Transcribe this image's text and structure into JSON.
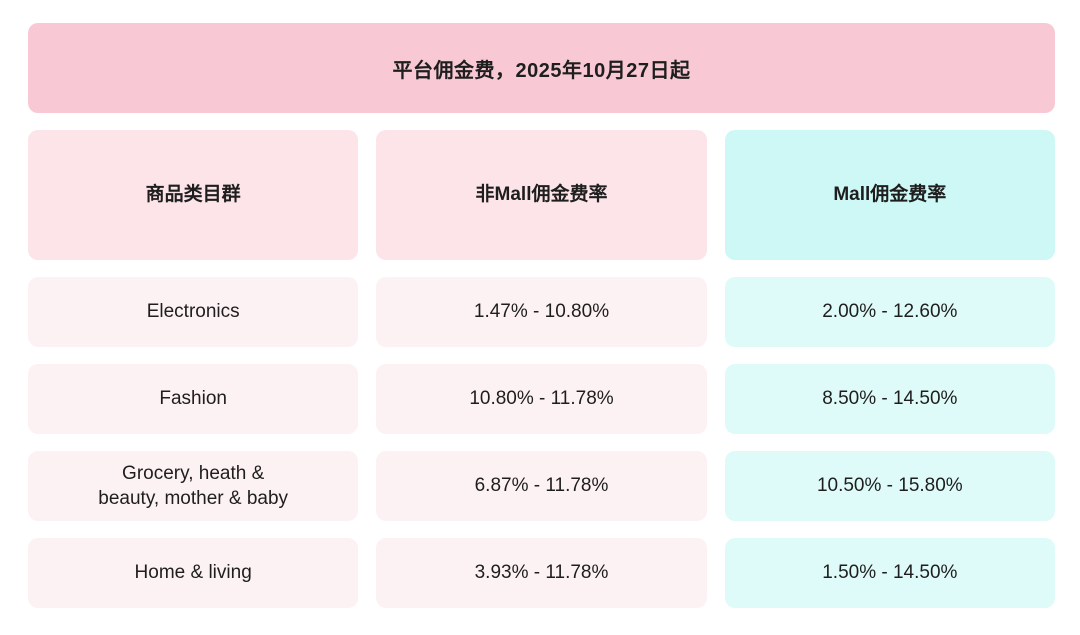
{
  "chart_data": {
    "type": "table",
    "title": "平台佣金费，2025年10月27日起",
    "columns": [
      "商品类目群",
      "非Mall佣金费率",
      "Mall佣金费率"
    ],
    "rows": [
      {
        "category": "Electronics",
        "non_mall_rate": "1.47% - 10.80%",
        "mall_rate": "2.00% - 12.60%"
      },
      {
        "category": "Fashion",
        "non_mall_rate": "10.80% - 11.78%",
        "mall_rate": "8.50% - 14.50%"
      },
      {
        "category": "Grocery, heath &\nbeauty, mother & baby",
        "non_mall_rate": "6.87% - 11.78%",
        "mall_rate": "10.50% - 15.80%"
      },
      {
        "category": "Home & living",
        "non_mall_rate": "3.93% - 11.78%",
        "mall_rate": "1.50% - 14.50%"
      }
    ]
  },
  "colors": {
    "title_bg": "#f8c9d4",
    "header_pink_bg": "#fce4e9",
    "header_cyan_bg": "#cdf8f6",
    "row_pink_bg": "#fdf2f3",
    "row_cyan_bg": "#dffbf9",
    "text": "#1e1e1e"
  }
}
